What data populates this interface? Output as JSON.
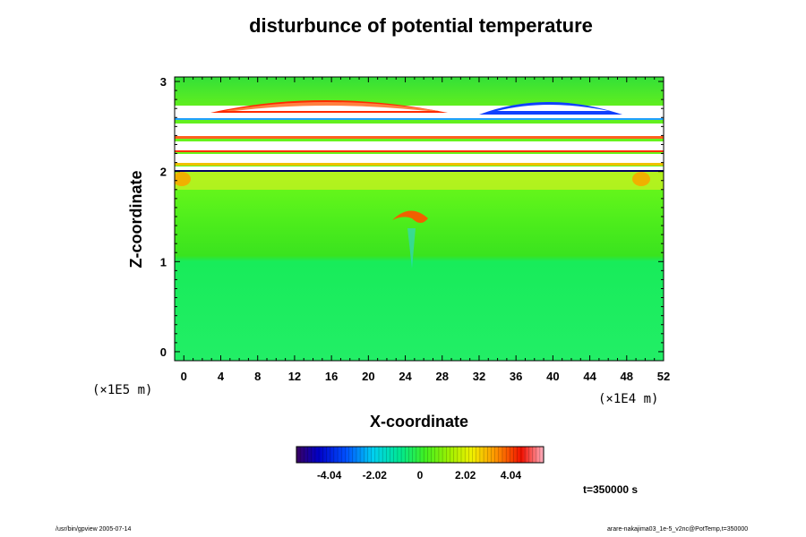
{
  "title": "disturbunce of potential temperature",
  "time_label": "t=350000 s",
  "footer_left": "/usr/bin/gpview 2005-07-14",
  "footer_right": "arare-nakajima03_1e-5_v2nc@PotTemp,t=350000",
  "chart_data": {
    "type": "heatmap",
    "title": "disturbunce of potential temperature",
    "xlabel": "X-coordinate",
    "ylabel": "Z-coordinate",
    "x_unit": "(×1E4 m)",
    "y_unit": "(×1E5 m)",
    "xlim": [
      -1,
      52
    ],
    "ylim": [
      -0.1,
      3.05
    ],
    "x_ticks": [
      0,
      4,
      8,
      12,
      16,
      20,
      24,
      28,
      32,
      36,
      40,
      44,
      48,
      52
    ],
    "y_ticks": [
      0,
      1,
      2,
      3
    ],
    "colorbar": {
      "range": [
        -5.5,
        5.5
      ],
      "tick_values": [
        -4.04,
        -2.02,
        0,
        2.02,
        4.04
      ],
      "tick_labels": [
        "-4.04",
        "-2.02",
        "0",
        "2.02",
        "4.04"
      ]
    },
    "grid": false
  }
}
